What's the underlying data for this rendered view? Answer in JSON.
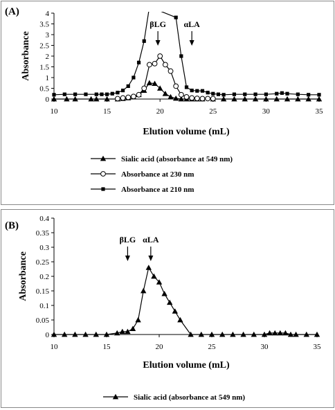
{
  "chart_data": [
    {
      "type": "line",
      "panel_label": "(A)",
      "xlabel": "Elution volume (mL)",
      "ylabel": "Absorbance",
      "xlim": [
        10,
        35
      ],
      "ylim": [
        0,
        4
      ],
      "x_ticks": [
        10,
        15,
        20,
        25,
        30,
        35
      ],
      "y_ticks": [
        0,
        0.5,
        1,
        1.5,
        2,
        2.5,
        3,
        3.5,
        4
      ],
      "grid": false,
      "legend_position": "bottom",
      "annotations": [
        {
          "text": "βLG",
          "x": 19.8
        },
        {
          "text": "αLA",
          "x": 23.0
        }
      ],
      "series": [
        {
          "name": "Sialic acid (absorbance at 549 nm)",
          "marker": "triangle",
          "x": [
            10,
            11.2,
            12,
            13.5,
            14,
            15,
            16,
            16.5,
            17,
            17.5,
            18,
            18.5,
            19,
            19.5,
            20,
            20.5,
            21,
            21.5,
            22,
            22.5,
            23,
            23.5,
            24,
            25,
            26,
            27,
            28,
            29,
            30,
            31,
            32,
            33,
            34,
            35
          ],
          "values": [
            0,
            0,
            0,
            0,
            0,
            0,
            0,
            0.02,
            0.05,
            0.1,
            0.2,
            0.4,
            0.75,
            0.72,
            0.5,
            0.25,
            0.1,
            0.03,
            0,
            0,
            0,
            0,
            0,
            0,
            0,
            0,
            0,
            0,
            0,
            0,
            0,
            0,
            0,
            0
          ]
        },
        {
          "name": "Absorbance at 230 nm",
          "marker": "circle",
          "x": [
            16,
            16.5,
            17,
            17.5,
            18,
            18.5,
            19,
            19.5,
            20,
            20.5,
            21,
            21.5,
            22,
            22.5,
            23,
            23.5,
            24,
            24.5,
            25
          ],
          "values": [
            0.02,
            0.05,
            0.08,
            0.12,
            0.2,
            0.5,
            1.6,
            1.65,
            2.0,
            1.6,
            1.3,
            0.6,
            0.2,
            0.1,
            0.05,
            0.03,
            0.02,
            0.02,
            0.02
          ]
        },
        {
          "name": "Absorbance at 210 nm",
          "marker": "square",
          "x": [
            10,
            11,
            12,
            13,
            14,
            14.5,
            15,
            15.5,
            16,
            16.5,
            17,
            17.5,
            18,
            18.5,
            19,
            21.5,
            22,
            22.5,
            23,
            23.5,
            24,
            24.5,
            25,
            25.5,
            26,
            27,
            28,
            29,
            30,
            31,
            31.5,
            32,
            33,
            34,
            35
          ],
          "values": [
            0.2,
            0.22,
            0.22,
            0.22,
            0.22,
            0.22,
            0.22,
            0.25,
            0.3,
            0.4,
            0.6,
            1.0,
            1.7,
            2.7,
            4.3,
            3.8,
            2.0,
            0.55,
            0.4,
            0.38,
            0.38,
            0.3,
            0.25,
            0.22,
            0.2,
            0.22,
            0.22,
            0.22,
            0.22,
            0.25,
            0.28,
            0.25,
            0.22,
            0.2,
            0.2
          ]
        }
      ]
    },
    {
      "type": "line",
      "panel_label": "(B)",
      "xlabel": "Elution volume (mL)",
      "ylabel": "Absorbance",
      "xlim": [
        10,
        35
      ],
      "ylim": [
        0,
        0.4
      ],
      "x_ticks": [
        10,
        15,
        20,
        25,
        30,
        35
      ],
      "y_ticks": [
        0,
        0.05,
        0.1,
        0.15,
        0.2,
        0.25,
        0.3,
        0.35,
        0.4
      ],
      "grid": false,
      "legend_position": "bottom",
      "annotations": [
        {
          "text": "βLG",
          "x": 17.0
        },
        {
          "text": "αLA",
          "x": 19.2
        }
      ],
      "series": [
        {
          "name": "Sialic acid (absorbance at 549 nm)",
          "marker": "triangle",
          "x": [
            10,
            11,
            12,
            13,
            14,
            15,
            16,
            16.5,
            17,
            17.5,
            18,
            18.5,
            19,
            19.5,
            20,
            20.5,
            21,
            21.5,
            22,
            23,
            24,
            25,
            26,
            27,
            28,
            29,
            30,
            30.5,
            31,
            31.5,
            32,
            32.5,
            33,
            34,
            35
          ],
          "values": [
            0,
            0,
            0,
            0,
            0,
            0,
            0.005,
            0.01,
            0.01,
            0.02,
            0.05,
            0.15,
            0.23,
            0.2,
            0.18,
            0.14,
            0.11,
            0.08,
            0.05,
            0,
            0,
            0,
            0,
            0,
            0,
            0,
            0,
            0.005,
            0.005,
            0.005,
            0.005,
            0,
            0,
            0,
            0
          ]
        }
      ]
    }
  ]
}
